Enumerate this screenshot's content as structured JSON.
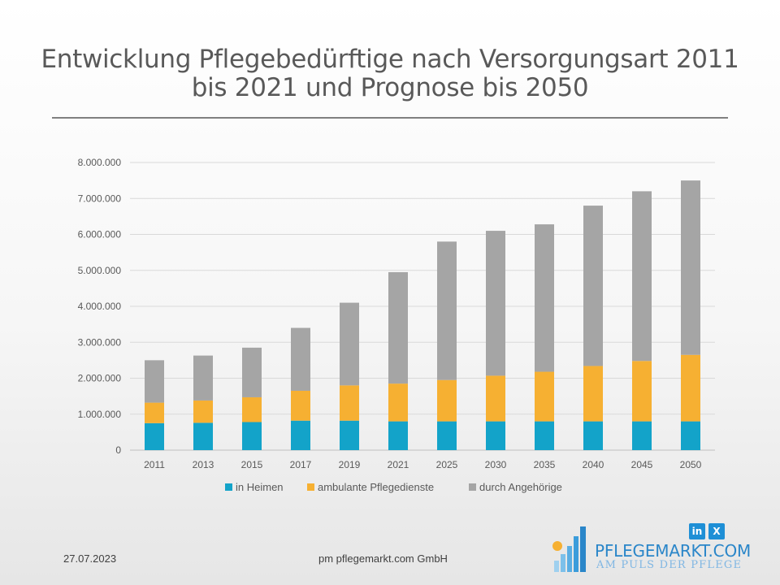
{
  "title_lines": [
    "Entwicklung Pflegebedürftige nach Versorgungsart 2011",
    "bis 2021 und Prognose bis 2050"
  ],
  "footer": {
    "date": "27.07.2023",
    "company": "pm pflegemarkt.com GmbH"
  },
  "brand": {
    "name": "PFLEGEMARKT.COM",
    "tagline": "AM PULS DER PFLEGE",
    "social": {
      "linkedin": "in",
      "xing": "X"
    }
  },
  "colors": {
    "in_heimen": "#13a3c9",
    "ambulant": "#f6b032",
    "angehoerige": "#a5a5a5",
    "grid": "#d9d9d9"
  },
  "chart_data": {
    "type": "bar",
    "stacked": true,
    "categories": [
      "2011",
      "2013",
      "2015",
      "2017",
      "2019",
      "2021",
      "2025",
      "2030",
      "2035",
      "2040",
      "2045",
      "2050"
    ],
    "series": [
      {
        "name": "in Heimen",
        "values": [
          750000,
          760000,
          780000,
          820000,
          820000,
          800000,
          800000,
          800000,
          800000,
          800000,
          800000,
          800000
        ]
      },
      {
        "name": "ambulante Pflegedienste",
        "values": [
          570000,
          620000,
          690000,
          830000,
          980000,
          1050000,
          1150000,
          1270000,
          1380000,
          1540000,
          1680000,
          1850000
        ]
      },
      {
        "name": "durch Angehörige",
        "values": [
          1180000,
          1250000,
          1380000,
          1750000,
          2300000,
          3100000,
          3850000,
          4030000,
          4100000,
          4460000,
          4720000,
          4850000
        ]
      }
    ],
    "yticks": [
      "0",
      "1.000.000",
      "2.000.000",
      "3.000.000",
      "4.000.000",
      "5.000.000",
      "6.000.000",
      "7.000.000",
      "8.000.000"
    ],
    "ylim": [
      0,
      8000000
    ],
    "grid": true,
    "legend_position": "bottom"
  }
}
